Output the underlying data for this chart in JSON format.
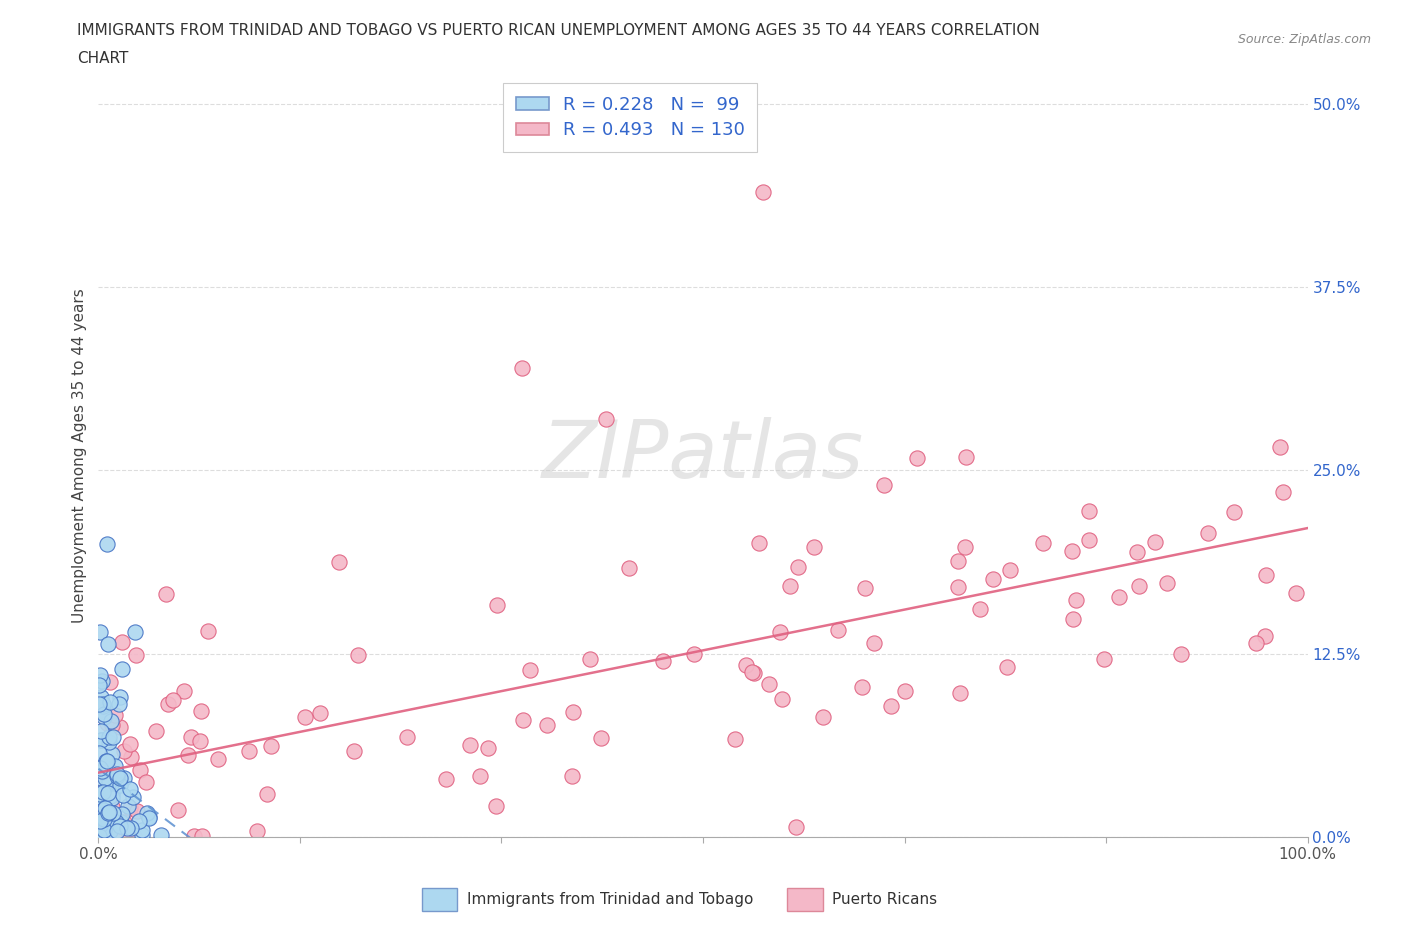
{
  "title_line1": "IMMIGRANTS FROM TRINIDAD AND TOBAGO VS PUERTO RICAN UNEMPLOYMENT AMONG AGES 35 TO 44 YEARS CORRELATION",
  "title_line2": "CHART",
  "source": "Source: ZipAtlas.com",
  "ylabel": "Unemployment Among Ages 35 to 44 years",
  "xlim": [
    0.0,
    1.0
  ],
  "ylim": [
    0.0,
    0.52
  ],
  "yticks": [
    0.0,
    0.125,
    0.25,
    0.375,
    0.5
  ],
  "ytick_labels": [
    "0.0%",
    "12.5%",
    "25.0%",
    "37.5%",
    "50.0%"
  ],
  "xtick_positions": [
    0.0,
    0.1667,
    0.3333,
    0.5,
    0.6667,
    0.8333,
    1.0
  ],
  "blue_R": 0.228,
  "blue_N": 99,
  "pink_R": 0.493,
  "pink_N": 130,
  "blue_color": "#ADD8F0",
  "blue_edge": "#4472C4",
  "blue_edge_width": 0.8,
  "pink_color": "#F4B8C8",
  "pink_edge": "#E06080",
  "pink_edge_width": 0.8,
  "trendline_blue_color": "#5B8FD0",
  "trendline_blue_dash": [
    6,
    4
  ],
  "trendline_pink_color": "#E06080",
  "watermark": "ZIPatlas",
  "legend_label_blue": "Immigrants from Trinidad and Tobago",
  "legend_label_pink": "Puerto Ricans",
  "background_color": "#ffffff",
  "grid_color": "#dddddd",
  "right_tick_color": "#3366CC",
  "title_color": "#333333",
  "source_color": "#888888",
  "ylabel_color": "#444444"
}
